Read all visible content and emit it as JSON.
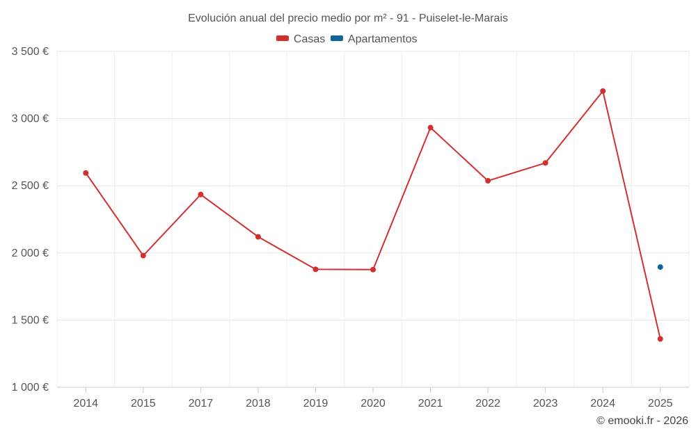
{
  "chart_data": {
    "type": "line",
    "title": "Evolución anual del precio medio por m² - 91 - Puiselet-le-Marais",
    "categories": [
      "2014",
      "2015",
      "2017",
      "2018",
      "2019",
      "2020",
      "2021",
      "2022",
      "2023",
      "2024",
      "2025"
    ],
    "series": [
      {
        "name": "Casas",
        "color": "#d32f2f",
        "values": [
          2595,
          1980,
          2435,
          2120,
          1878,
          1876,
          2933,
          2537,
          2670,
          3205,
          1360
        ]
      },
      {
        "name": "Apartamentos",
        "color": "#0e6398",
        "values": [
          null,
          null,
          null,
          null,
          null,
          null,
          null,
          null,
          null,
          null,
          1895
        ]
      }
    ],
    "ylim": [
      1000,
      3500
    ],
    "yticks": [
      1000,
      1500,
      2000,
      2500,
      3000,
      3500
    ],
    "ytick_labels": [
      "1 000 €",
      "1 500 €",
      "2 000 €",
      "2 500 €",
      "3 000 €",
      "3 500 €"
    ],
    "xlabel": "",
    "ylabel": "",
    "legend_position": "top-center",
    "grid": true
  },
  "credit": "© emooki.fr - 2026"
}
